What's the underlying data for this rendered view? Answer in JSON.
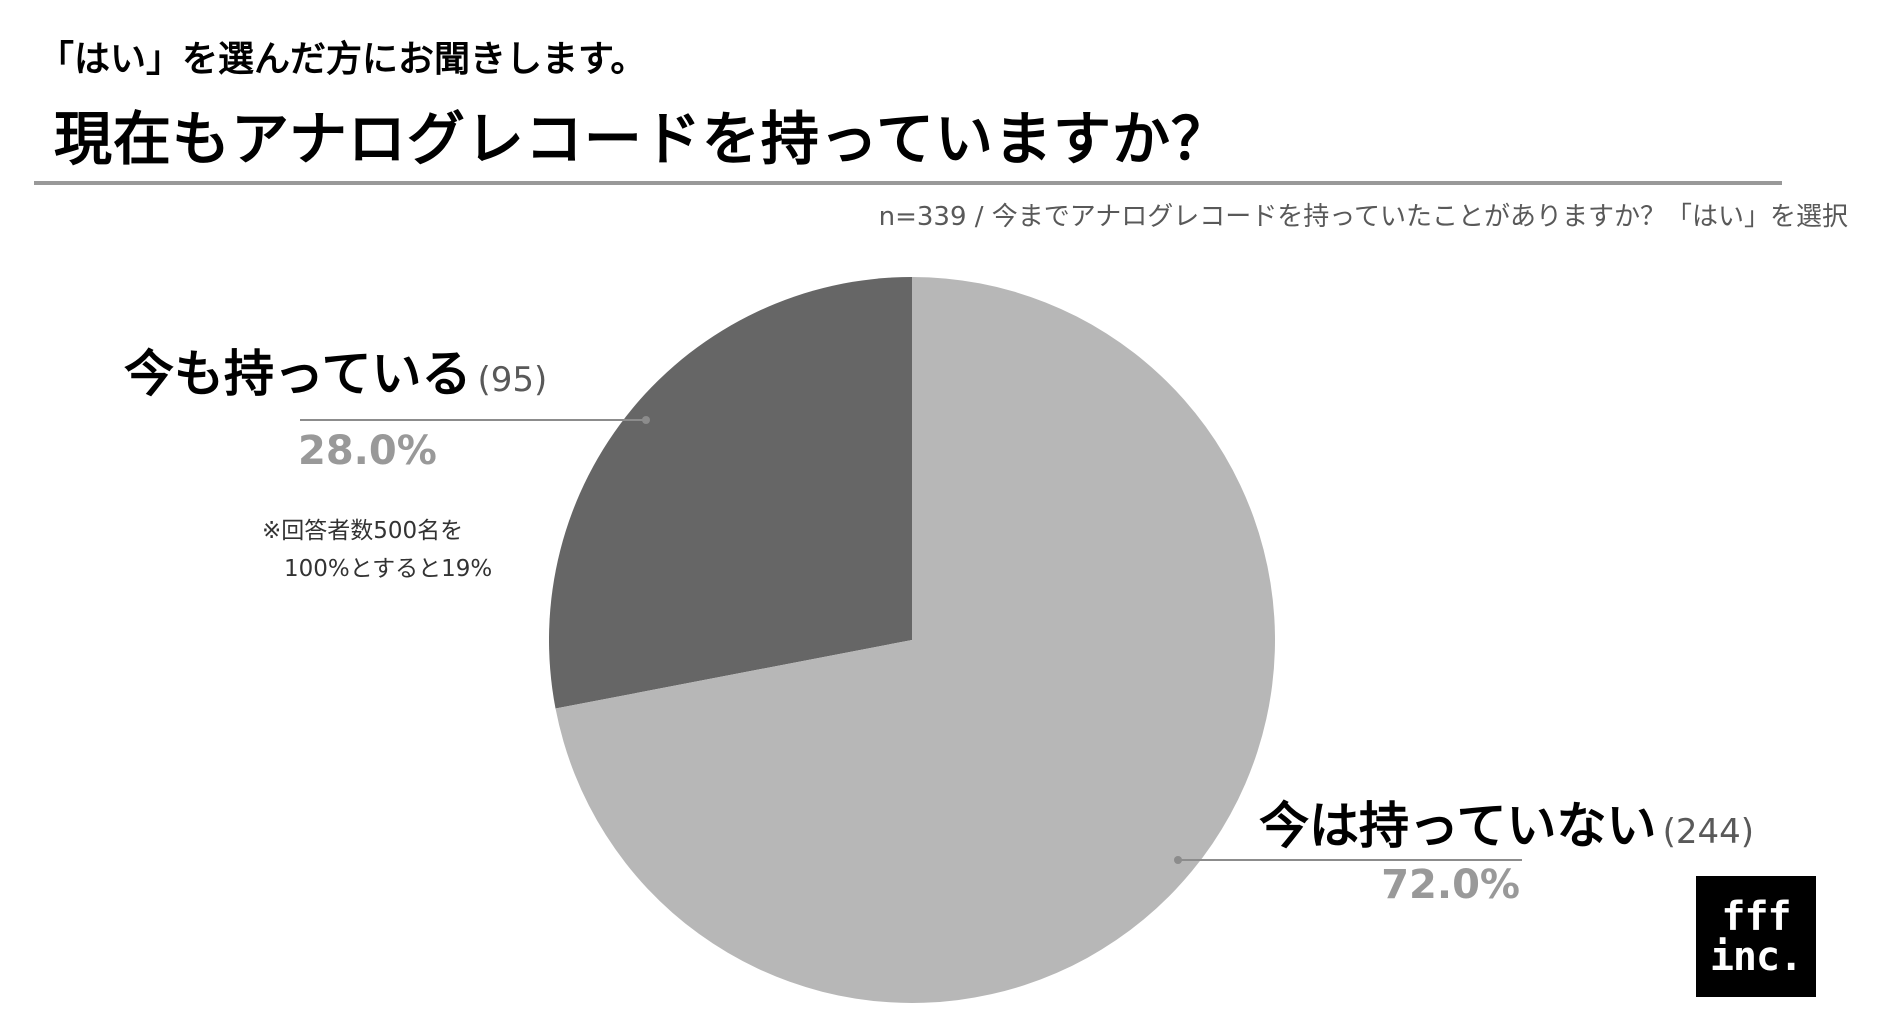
{
  "header": {
    "subtitle": "「はい」を選んだ方にお聞きします。",
    "title": "現在もアナログレコードを持っていますか？",
    "note": "n=339 / 今までアナログレコードを持っていたことがありますか？「はい」を選択"
  },
  "footnote": {
    "line1": "※回答者数500名を",
    "line2": "100%とすると19%"
  },
  "logo": {
    "line1": "fff",
    "line2": "inc."
  },
  "colors": {
    "slice_still_own": "#666666",
    "slice_not_own": "#b7b7b7",
    "leader": "#8c8c8c",
    "percent_text": "#999999"
  },
  "chart_data": {
    "type": "pie",
    "title": "現在もアナログレコードを持っていますか？",
    "slices": [
      {
        "label": "今も持っている",
        "count": "(95)",
        "value": 95,
        "percent": "28.0%"
      },
      {
        "label": "今は持っていない",
        "count": "(244)",
        "value": 244,
        "percent": "72.0%"
      }
    ]
  }
}
